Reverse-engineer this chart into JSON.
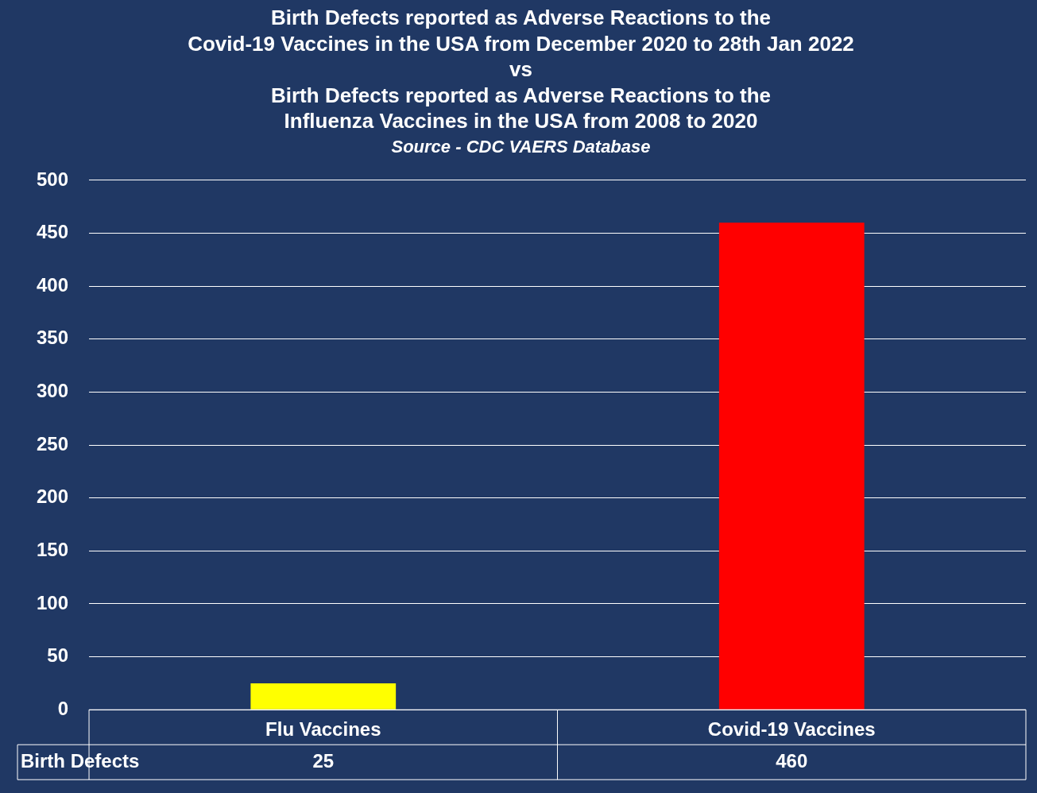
{
  "chart_data": {
    "type": "bar",
    "title": "Birth Defects reported as Adverse Reactions to the\nCovid-19 Vaccines in the USA from December 2020 to 28th Jan 2022\nvs\nBirth Defects reported as Adverse Reactions to the\nInfluenza Vaccines in the USA from 2008 to 2020",
    "subtitle": "Source - CDC VAERS Database",
    "categories": [
      "Flu Vaccines",
      "Covid-19 Vaccines"
    ],
    "series": [
      {
        "name": "Birth Defects",
        "colors": [
          "#ffff00",
          "#ff0000"
        ],
        "values": [
          25,
          460
        ]
      }
    ],
    "ylim": [
      0,
      500
    ],
    "yticks": [
      0,
      50,
      100,
      150,
      200,
      250,
      300,
      350,
      400,
      450,
      500
    ],
    "grid": "y",
    "legend": false,
    "data_labels": true
  }
}
